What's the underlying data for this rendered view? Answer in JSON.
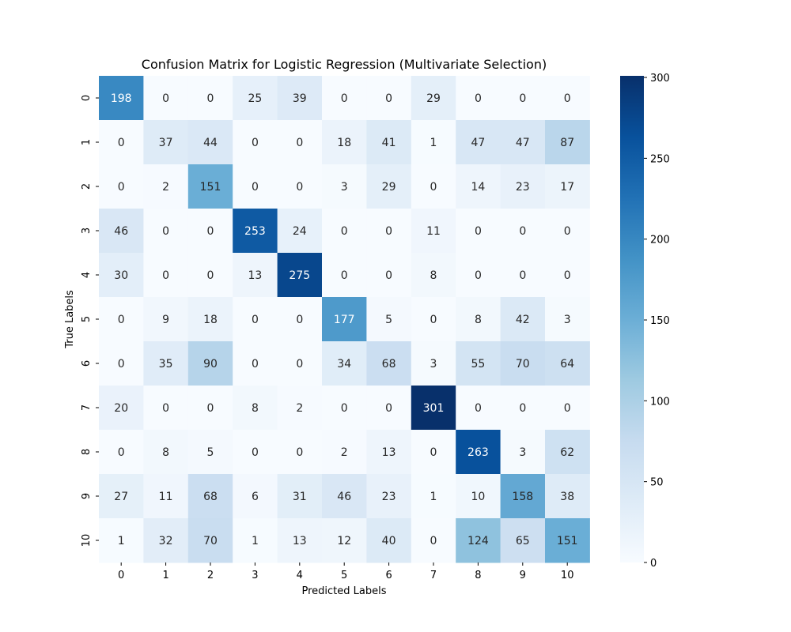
{
  "chart_data": {
    "type": "heatmap",
    "title": "Confusion Matrix for Logistic Regression (Multivariate Selection)",
    "xlabel": "Predicted Labels",
    "ylabel": "True Labels",
    "x_categories": [
      "0",
      "1",
      "2",
      "3",
      "4",
      "5",
      "6",
      "7",
      "8",
      "9",
      "10"
    ],
    "y_categories": [
      "0",
      "1",
      "2",
      "3",
      "4",
      "5",
      "6",
      "7",
      "8",
      "9",
      "10"
    ],
    "values": [
      [
        198,
        0,
        0,
        25,
        39,
        0,
        0,
        29,
        0,
        0,
        0
      ],
      [
        0,
        37,
        44,
        0,
        0,
        18,
        41,
        1,
        47,
        47,
        87
      ],
      [
        0,
        2,
        151,
        0,
        0,
        3,
        29,
        0,
        14,
        23,
        17
      ],
      [
        46,
        0,
        0,
        253,
        24,
        0,
        0,
        11,
        0,
        0,
        0
      ],
      [
        30,
        0,
        0,
        13,
        275,
        0,
        0,
        8,
        0,
        0,
        0
      ],
      [
        0,
        9,
        18,
        0,
        0,
        177,
        5,
        0,
        8,
        42,
        3
      ],
      [
        0,
        35,
        90,
        0,
        0,
        34,
        68,
        3,
        55,
        70,
        64
      ],
      [
        20,
        0,
        0,
        8,
        2,
        0,
        0,
        301,
        0,
        0,
        0
      ],
      [
        0,
        8,
        5,
        0,
        0,
        2,
        13,
        0,
        263,
        3,
        62
      ],
      [
        27,
        11,
        68,
        6,
        31,
        46,
        23,
        1,
        10,
        158,
        38
      ],
      [
        1,
        32,
        70,
        1,
        13,
        12,
        40,
        0,
        124,
        65,
        151
      ]
    ],
    "colorbar": {
      "min": 0,
      "max": 301,
      "ticks": [
        0,
        50,
        100,
        150,
        200,
        250,
        300
      ],
      "colormap": "Blues"
    }
  }
}
